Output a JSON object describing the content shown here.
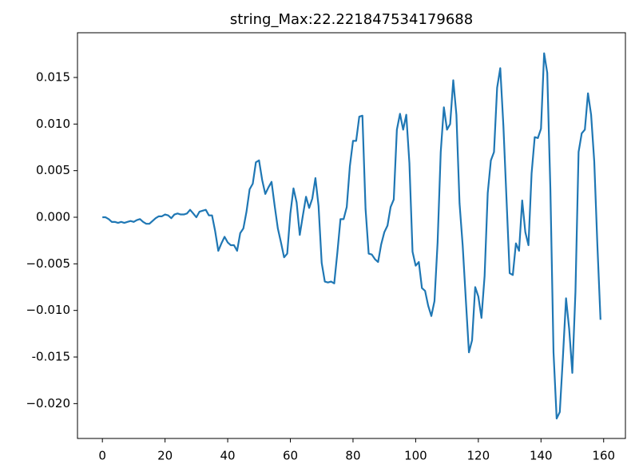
{
  "chart_data": {
    "type": "line",
    "title": "string_Max:22.221847534179688",
    "x": [
      0,
      1,
      2,
      3,
      4,
      5,
      6,
      7,
      8,
      9,
      10,
      11,
      12,
      13,
      14,
      15,
      16,
      17,
      18,
      19,
      20,
      21,
      22,
      23,
      24,
      25,
      26,
      27,
      28,
      29,
      30,
      31,
      32,
      33,
      34,
      35,
      36,
      37,
      38,
      39,
      40,
      41,
      42,
      43,
      44,
      45,
      46,
      47,
      48,
      49,
      50,
      51,
      52,
      53,
      54,
      55,
      56,
      57,
      58,
      59,
      60,
      61,
      62,
      63,
      64,
      65,
      66,
      67,
      68,
      69,
      70,
      71,
      72,
      73,
      74,
      75,
      76,
      77,
      78,
      79,
      80,
      81,
      82,
      83,
      84,
      85,
      86,
      87,
      88,
      89,
      90,
      91,
      92,
      93,
      94,
      95,
      96,
      97,
      98,
      99,
      100,
      101,
      102,
      103,
      104,
      105,
      106,
      107,
      108,
      109,
      110,
      111,
      112,
      113,
      114,
      115,
      116,
      117,
      118,
      119,
      120,
      121,
      122,
      123,
      124,
      125,
      126,
      127,
      128,
      129,
      130,
      131,
      132,
      133,
      134,
      135,
      136,
      137,
      138,
      139,
      140,
      141,
      142,
      143,
      144,
      145,
      146,
      147,
      148,
      149,
      150,
      151,
      152,
      153,
      154,
      155,
      156,
      157,
      158,
      159
    ],
    "series": [
      {
        "color": "#1f77b4",
        "values": [
          0,
          0,
          -0.0002,
          -0.0005,
          -0.0005,
          -0.0006,
          -0.0005,
          -0.0006,
          -0.0005,
          -0.0004,
          -0.0005,
          -0.0003,
          -0.0002,
          -0.0005,
          -0.0007,
          -0.0007,
          -0.0004,
          -0.0001,
          0.0001,
          0.0001,
          0.0003,
          0.0002,
          -0.0001,
          0.0003,
          0.0004,
          0.0003,
          0.0003,
          0.0004,
          0.0008,
          0.0004,
          0,
          0.0006,
          0.0007,
          0.0008,
          0.0002,
          0.0002,
          -0.0015,
          -0.0036,
          -0.0028,
          -0.0021,
          -0.0027,
          -0.003,
          -0.003,
          -0.0036,
          -0.0017,
          -0.0012,
          0.0006,
          0.003,
          0.0036,
          0.0059,
          0.0061,
          0.004,
          0.0025,
          0.0032,
          0.0038,
          0.0012,
          -0.0012,
          -0.0027,
          -0.0043,
          -0.0039,
          0.0004,
          0.0031,
          0.0016,
          -0.0019,
          0.0002,
          0.0022,
          0.001,
          0.002,
          0.0042,
          0.0012,
          -0.0049,
          -0.0069,
          -0.007,
          -0.0069,
          -0.0071,
          -0.0038,
          -0.0002,
          -0.0002,
          0.0011,
          0.0055,
          0.0082,
          0.0082,
          0.0108,
          0.0109,
          0.0009,
          -0.0039,
          -0.004,
          -0.0045,
          -0.0048,
          -0.0029,
          -0.0016,
          -0.0009,
          0.0011,
          0.0019,
          0.0094,
          0.0111,
          0.0094,
          0.011,
          0.0058,
          -0.0037,
          -0.0052,
          -0.0048,
          -0.0076,
          -0.0079,
          -0.0095,
          -0.0106,
          -0.009,
          -0.0027,
          0.007,
          0.0118,
          0.0094,
          0.01,
          0.0147,
          0.011,
          0.0015,
          -0.003,
          -0.0088,
          -0.0145,
          -0.0132,
          -0.0075,
          -0.0085,
          -0.0108,
          -0.0063,
          0.0026,
          0.0061,
          0.007,
          0.0139,
          0.016,
          0.0098,
          0.0019,
          -0.006,
          -0.0062,
          -0.0028,
          -0.0036,
          0.0018,
          -0.0016,
          -0.003,
          0.0047,
          0.0086,
          0.0085,
          0.0095,
          0.0176,
          0.0155,
          0.003,
          -0.0145,
          -0.0216,
          -0.0209,
          -0.015,
          -0.0087,
          -0.012,
          -0.0167,
          -0.008,
          0.007,
          0.009,
          0.0094,
          0.0133,
          0.011,
          0.006,
          -0.003,
          -0.011
        ]
      }
    ],
    "xlim": [
      -7.95,
      166.95
    ],
    "xticks": [
      0,
      20,
      40,
      60,
      80,
      100,
      120,
      140,
      160
    ],
    "ylim": [
      -0.02374,
      0.0198
    ],
    "yticks": [
      {
        "value": -0.02,
        "label": "−0.020"
      },
      -0.015,
      {
        "value": -0.01,
        "label": "−0.010"
      },
      {
        "value": -0.005,
        "label": "−0.005"
      },
      {
        "value": 0,
        "label": "0.000"
      },
      0.005,
      {
        "value": 0.01,
        "label": "0.010"
      },
      0.015
    ]
  }
}
